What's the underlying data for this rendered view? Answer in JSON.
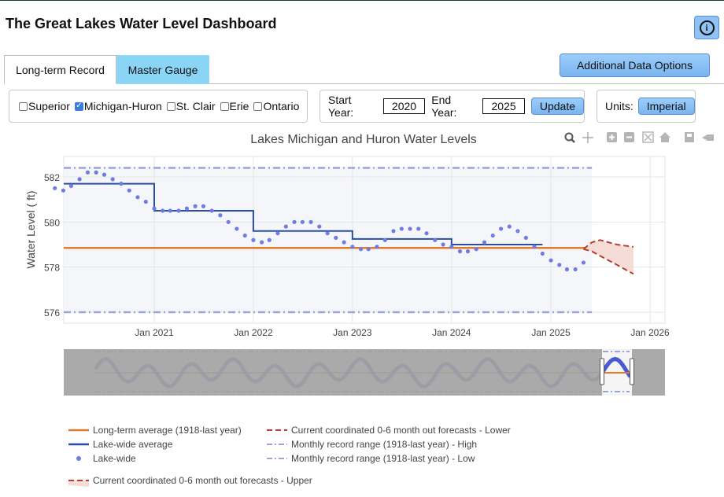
{
  "app": {
    "title": "The Great Lakes Water Level Dashboard",
    "info_glyph": "i"
  },
  "tabs": [
    {
      "label": "Long-term Record",
      "active": true
    },
    {
      "label": "Master Gauge",
      "active": false
    }
  ],
  "additional_button": "Additional Data Options",
  "lakes": [
    {
      "label": "Superior",
      "checked": false
    },
    {
      "label": "Michigan-Huron",
      "checked": true
    },
    {
      "label": "St. Clair",
      "checked": false
    },
    {
      "label": "Erie",
      "checked": false
    },
    {
      "label": "Ontario",
      "checked": false
    }
  ],
  "years": {
    "start_label": "Start Year:",
    "start_value": "2020",
    "end_label": "End Year:",
    "end_value": "2025",
    "update_label": "Update"
  },
  "units": {
    "label": "Units:",
    "value": "Imperial"
  },
  "toolbar_icons": [
    "zoom-icon",
    "pan-icon",
    "zoom-in-icon",
    "zoom-out-icon",
    "autoscale-icon",
    "reset-axes-icon",
    "download-icon",
    "spike-lines-icon"
  ],
  "colors": {
    "average": "#e07b2c",
    "lakewide_avg": "#2b4fa0",
    "points": "#6f7ce3",
    "record": "#9aa6d8",
    "forecast": "#b3402f",
    "forecast_fill": "#f6dcd6",
    "plot_bg": "#f5f6fa",
    "range_bg": "#a3a3a3",
    "accent": "#8ad4f5"
  },
  "chart_data": {
    "type": "line",
    "title": "Lakes Michigan and Huron Water Levels",
    "ylabel": "Water Level ( ft)",
    "xlabel": "",
    "xlim": [
      "2020-01-01",
      "2026-01-01"
    ],
    "ylim": [
      575.8,
      582.8
    ],
    "x_ticks": [
      "Jan 2021",
      "Jan 2022",
      "Jan 2023",
      "Jan 2024",
      "Jan 2025",
      "Jan 2026"
    ],
    "y_ticks": [
      "576",
      "578",
      "580",
      "582"
    ],
    "grid": true,
    "legend_position": "bottom",
    "series": [
      {
        "name": "Long-term average (1918-last year)",
        "type": "line",
        "x": [
          "2020-01-01",
          "2025-06-01"
        ],
        "y": [
          578.85,
          578.85
        ]
      },
      {
        "name": "Lake-wide average",
        "type": "step",
        "x": [
          "2020-01-01",
          "2020-12-01",
          "2021-01-01",
          "2021-12-01",
          "2022-01-01",
          "2022-12-01",
          "2023-01-01",
          "2023-12-01",
          "2024-01-01",
          "2024-12-01"
        ],
        "y": [
          581.7,
          581.7,
          580.5,
          580.5,
          579.6,
          579.6,
          579.25,
          579.25,
          579.0,
          579.0
        ]
      },
      {
        "name": "Lake-wide",
        "type": "scatter",
        "x": [
          "2020-01-01",
          "2020-02-01",
          "2020-03-01",
          "2020-04-01",
          "2020-05-01",
          "2020-06-01",
          "2020-07-01",
          "2020-08-01",
          "2020-09-01",
          "2020-10-01",
          "2020-11-01",
          "2020-12-01",
          "2021-01-01",
          "2021-02-01",
          "2021-03-01",
          "2021-04-01",
          "2021-05-01",
          "2021-06-01",
          "2021-07-01",
          "2021-08-01",
          "2021-09-01",
          "2021-10-01",
          "2021-11-01",
          "2021-12-01",
          "2022-01-01",
          "2022-02-01",
          "2022-03-01",
          "2022-04-01",
          "2022-05-01",
          "2022-06-01",
          "2022-07-01",
          "2022-08-01",
          "2022-09-01",
          "2022-10-01",
          "2022-11-01",
          "2022-12-01",
          "2023-01-01",
          "2023-02-01",
          "2023-03-01",
          "2023-04-01",
          "2023-05-01",
          "2023-06-01",
          "2023-07-01",
          "2023-08-01",
          "2023-09-01",
          "2023-10-01",
          "2023-11-01",
          "2023-12-01",
          "2024-01-01",
          "2024-02-01",
          "2024-03-01",
          "2024-04-01",
          "2024-05-01",
          "2024-06-01",
          "2024-07-01",
          "2024-08-01",
          "2024-09-01",
          "2024-10-01",
          "2024-11-01",
          "2024-12-01",
          "2025-01-01",
          "2025-02-01",
          "2025-03-01",
          "2025-04-01",
          "2025-05-01"
        ],
        "y": [
          581.5,
          581.4,
          581.6,
          581.9,
          582.2,
          582.2,
          582.1,
          581.9,
          581.7,
          581.4,
          581.1,
          580.9,
          580.6,
          580.5,
          580.5,
          580.5,
          580.6,
          580.7,
          580.7,
          580.5,
          580.3,
          580.0,
          579.7,
          579.4,
          579.2,
          579.1,
          579.2,
          579.5,
          579.8,
          580.0,
          580.0,
          580.0,
          579.8,
          579.5,
          579.3,
          579.1,
          578.9,
          578.8,
          578.8,
          578.9,
          579.2,
          579.6,
          579.7,
          579.7,
          579.7,
          579.5,
          579.2,
          579.0,
          578.9,
          578.7,
          578.7,
          578.8,
          579.1,
          579.4,
          579.7,
          579.8,
          579.6,
          579.3,
          578.9,
          578.6,
          578.3,
          578.1,
          577.9,
          577.9,
          578.2
        ]
      },
      {
        "name": "Monthly record range (1918-last year) - High",
        "type": "dashdot",
        "x": [
          "2020-01-01",
          "2025-06-01"
        ],
        "y": [
          582.4,
          582.4
        ]
      },
      {
        "name": "Monthly record range (1918-last year) - Low",
        "type": "dashdot",
        "x": [
          "2020-01-01",
          "2025-06-01"
        ],
        "y": [
          576.0,
          576.0
        ]
      },
      {
        "name": "Current coordinated 0-6 month out forecasts - Upper",
        "type": "dash",
        "x": [
          "2025-05-01",
          "2025-06-01",
          "2025-07-01",
          "2025-08-01",
          "2025-09-01",
          "2025-10-01",
          "2025-11-01"
        ],
        "y": [
          578.8,
          579.1,
          579.2,
          579.1,
          579.0,
          578.95,
          578.9
        ]
      },
      {
        "name": "Current coordinated 0-6 month out forecasts - Lower",
        "type": "dash",
        "x": [
          "2025-05-01",
          "2025-06-01",
          "2025-07-01",
          "2025-08-01",
          "2025-09-01",
          "2025-10-01",
          "2025-11-01"
        ],
        "y": [
          578.8,
          578.7,
          578.5,
          578.3,
          578.1,
          577.9,
          577.7
        ]
      }
    ]
  }
}
